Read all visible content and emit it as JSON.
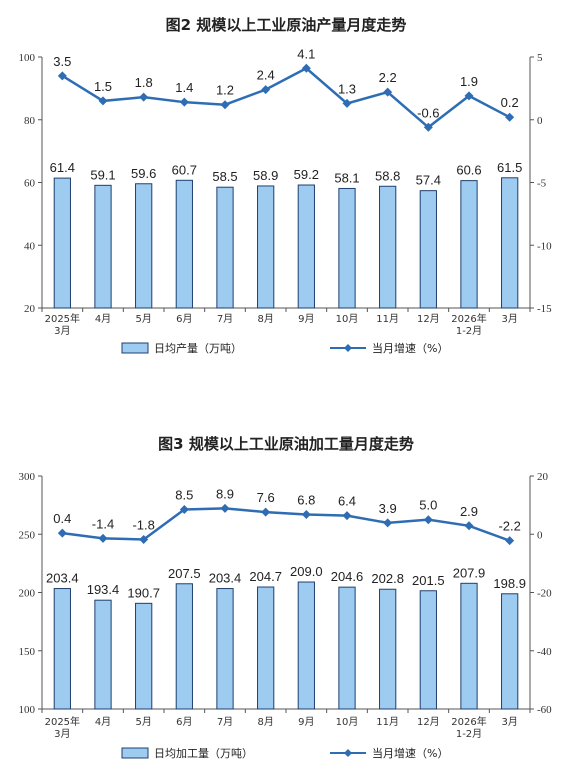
{
  "colors": {
    "bar_fill": "#9ecbf0",
    "bar_stroke": "#1f3f6e",
    "line": "#2e6db4",
    "axis": "#555555"
  },
  "chart_data": [
    {
      "type": "bar",
      "title": "图2  规模以上工业原油产量月度走势",
      "categories": [
        "2025年\n3月",
        "4月",
        "5月",
        "6月",
        "7月",
        "8月",
        "9月",
        "10月",
        "11月",
        "12月",
        "2026年\n1-2月",
        "3月"
      ],
      "series": [
        {
          "name": "日均产量（万吨）",
          "type": "bar",
          "axis": "left",
          "values": [
            61.4,
            59.1,
            59.6,
            60.7,
            58.5,
            58.9,
            59.2,
            58.1,
            58.8,
            57.4,
            60.6,
            61.5
          ],
          "labels": [
            "61.4",
            "59.1",
            "59.6",
            "60.7",
            "58.5",
            "58.9",
            "59.2",
            "58.1",
            "58.8",
            "57.4",
            "60.6",
            "61.5"
          ]
        },
        {
          "name": "当月增速（%）",
          "type": "line",
          "axis": "right",
          "values": [
            3.5,
            1.5,
            1.8,
            1.4,
            1.2,
            2.4,
            4.1,
            1.3,
            2.2,
            -0.6,
            1.9,
            0.2
          ],
          "labels": [
            "3.5",
            "1.5",
            "1.8",
            "1.4",
            "1.2",
            "2.4",
            "4.1",
            "1.3",
            "2.2",
            "-0.6",
            "1.9",
            "0.2"
          ]
        }
      ],
      "ylim_left": [
        20,
        100
      ],
      "yticks_left": [
        "100",
        "80",
        "60",
        "40",
        "20"
      ],
      "ylim_right": [
        -15,
        5
      ],
      "yticks_right": [
        "5",
        "0",
        "-5",
        "-10",
        "-15"
      ],
      "legend": "bottom"
    },
    {
      "type": "bar",
      "title": "图3  规模以上工业原油加工量月度走势",
      "categories": [
        "2025年\n3月",
        "4月",
        "5月",
        "6月",
        "7月",
        "8月",
        "9月",
        "10月",
        "11月",
        "12月",
        "2026年\n1-2月",
        "3月"
      ],
      "series": [
        {
          "name": "日均加工量（万吨）",
          "type": "bar",
          "axis": "left",
          "values": [
            203.4,
            193.4,
            190.7,
            207.5,
            203.4,
            204.7,
            209.0,
            204.6,
            202.8,
            201.5,
            207.9,
            198.9
          ],
          "labels": [
            "203.4",
            "193.4",
            "190.7",
            "207.5",
            "203.4",
            "204.7",
            "209.0",
            "204.6",
            "202.8",
            "201.5",
            "207.9",
            "198.9"
          ]
        },
        {
          "name": "当月增速（%）",
          "type": "line",
          "axis": "right",
          "values": [
            0.4,
            -1.4,
            -1.8,
            8.5,
            8.9,
            7.6,
            6.8,
            6.4,
            3.9,
            5.0,
            2.9,
            -2.2
          ],
          "labels": [
            "0.4",
            "-1.4",
            "-1.8",
            "8.5",
            "8.9",
            "7.6",
            "6.8",
            "6.4",
            "3.9",
            "5.0",
            "2.9",
            "-2.2"
          ]
        }
      ],
      "ylim_left": [
        100,
        300
      ],
      "yticks_left": [
        "300",
        "250",
        "200",
        "150",
        "100"
      ],
      "ylim_right": [
        -60,
        20
      ],
      "yticks_right": [
        "20",
        "0",
        "-20",
        "-40",
        "-60"
      ],
      "legend": "bottom"
    }
  ]
}
